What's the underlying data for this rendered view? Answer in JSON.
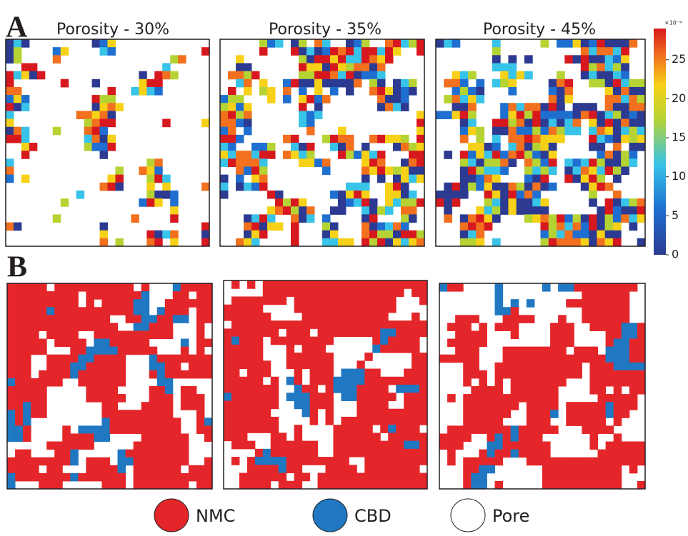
{
  "panel_a": {
    "label": "A",
    "titles": [
      "Porosity - 30%",
      "Porosity - 35%",
      "Porosity - 45%"
    ]
  },
  "panel_b": {
    "label": "B"
  },
  "colorbar": {
    "exponent_label": "×10⁻⁴",
    "range": [
      0,
      29
    ],
    "ticks": [
      0,
      5,
      10,
      15,
      20,
      25
    ]
  },
  "legend": [
    {
      "label": "NMC",
      "color": "#e4262a"
    },
    {
      "label": "CBD",
      "color": "#1f78c1"
    },
    {
      "label": "Pore",
      "color": "#ffffff"
    }
  ]
}
